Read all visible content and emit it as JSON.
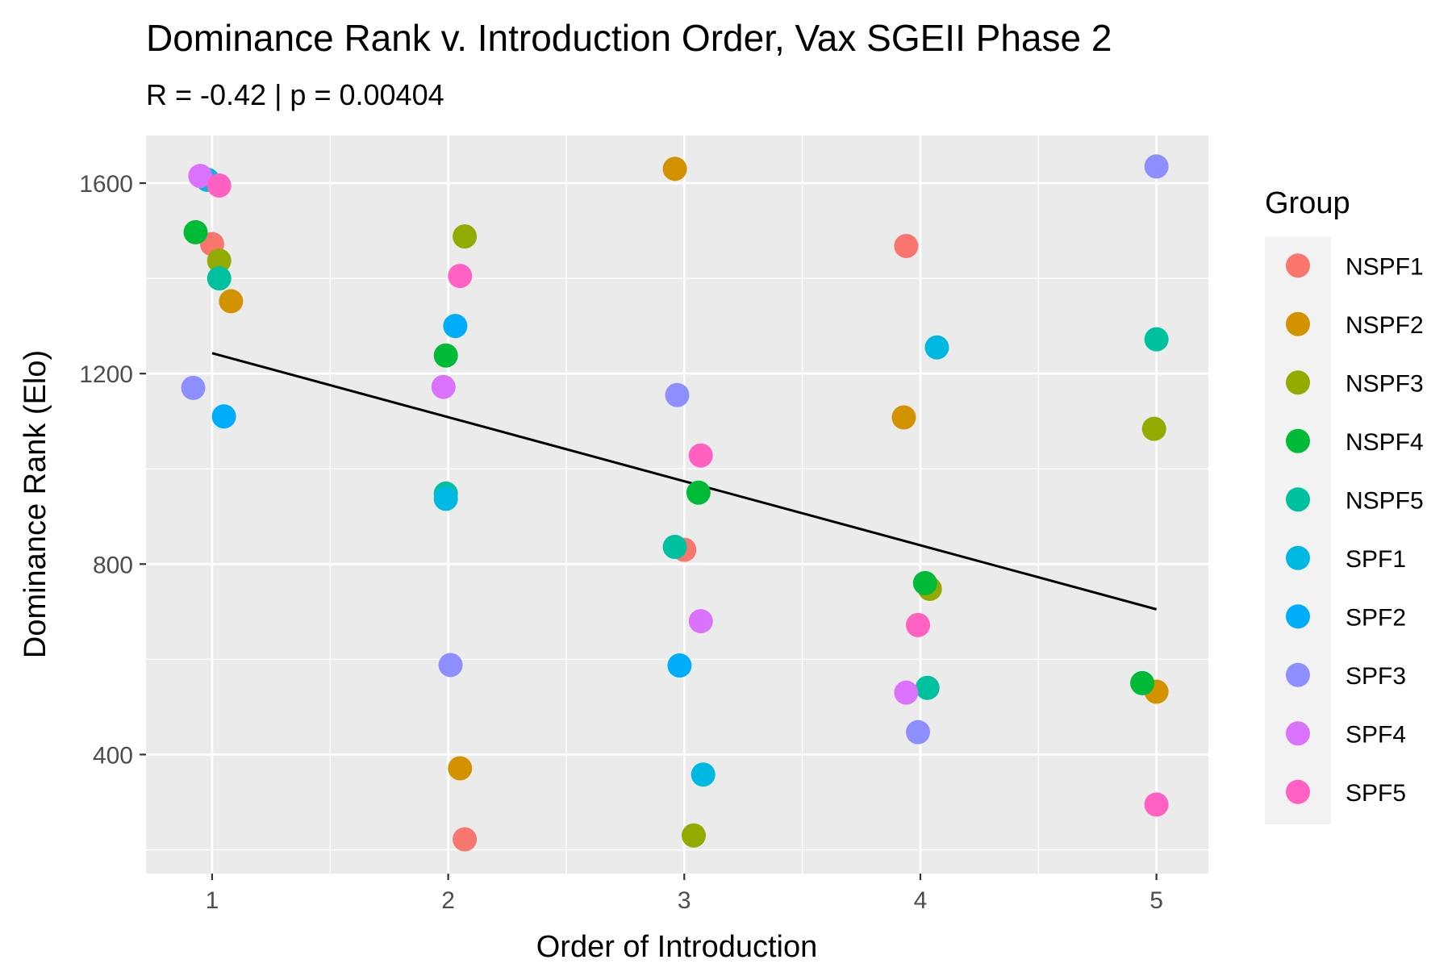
{
  "chart_data": {
    "type": "scatter",
    "title": "Dominance Rank v. Introduction Order, Vax SGEII Phase 2",
    "subtitle": "R = -0.42 | p = 0.00404",
    "xlabel": "Order of Introduction",
    "ylabel": "Dominance Rank (Elo)",
    "xlim": [
      0.72,
      5.22
    ],
    "ylim": [
      150,
      1700
    ],
    "x_ticks": [
      1,
      2,
      3,
      4,
      5
    ],
    "x_tick_labels": [
      "1",
      "2",
      "3",
      "4",
      "5"
    ],
    "y_ticks": [
      400,
      800,
      1200,
      1600
    ],
    "y_tick_labels": [
      "400",
      "800",
      "1200",
      "1600"
    ],
    "grid": true,
    "legend": {
      "title": "Group",
      "placement": "right"
    },
    "trend_line": {
      "x": [
        1,
        5
      ],
      "y": [
        1243,
        705
      ]
    },
    "series": [
      {
        "name": "NSPF1",
        "color": "#F8766D",
        "points": [
          [
            1.0,
            1472
          ],
          [
            3.0,
            830
          ],
          [
            2.07,
            222
          ],
          [
            3.94,
            1468
          ]
        ]
      },
      {
        "name": "NSPF2",
        "color": "#D39200",
        "points": [
          [
            1.08,
            1352
          ],
          [
            2.05,
            371
          ],
          [
            2.96,
            1630
          ],
          [
            3.93,
            1108
          ],
          [
            5.0,
            532
          ]
        ]
      },
      {
        "name": "NSPF3",
        "color": "#93AA00",
        "points": [
          [
            1.03,
            1437
          ],
          [
            2.07,
            1488
          ],
          [
            3.04,
            230
          ],
          [
            4.04,
            748
          ],
          [
            4.99,
            1084
          ]
        ]
      },
      {
        "name": "NSPF4",
        "color": "#00BA38",
        "points": [
          [
            0.93,
            1497
          ],
          [
            1.99,
            1238
          ],
          [
            3.06,
            950
          ],
          [
            4.02,
            760
          ],
          [
            4.94,
            550
          ]
        ]
      },
      {
        "name": "NSPF5",
        "color": "#00C19F",
        "points": [
          [
            1.03,
            1400
          ],
          [
            1.99,
            948
          ],
          [
            2.96,
            836
          ],
          [
            4.03,
            540
          ],
          [
            5.0,
            1272
          ]
        ]
      },
      {
        "name": "SPF1",
        "color": "#00B9E3",
        "points": [
          [
            0.98,
            1607
          ],
          [
            1.99,
            937
          ],
          [
            3.08,
            358
          ],
          [
            4.07,
            1255
          ]
        ]
      },
      {
        "name": "SPF2",
        "color": "#00ADFA",
        "points": [
          [
            1.05,
            1110
          ],
          [
            2.03,
            1300
          ],
          [
            2.98,
            587
          ]
        ]
      },
      {
        "name": "SPF3",
        "color": "#8E8FFF",
        "points": [
          [
            0.92,
            1170
          ],
          [
            2.01,
            588
          ],
          [
            2.97,
            1155
          ],
          [
            3.99,
            447
          ],
          [
            5.0,
            1635
          ]
        ]
      },
      {
        "name": "SPF4",
        "color": "#DB72FB",
        "points": [
          [
            0.95,
            1615
          ],
          [
            1.98,
            1172
          ],
          [
            3.07,
            680
          ],
          [
            3.94,
            530
          ]
        ]
      },
      {
        "name": "SPF5",
        "color": "#FF61C3",
        "points": [
          [
            1.03,
            1595
          ],
          [
            2.05,
            1405
          ],
          [
            3.07,
            1028
          ],
          [
            3.99,
            672
          ],
          [
            5.0,
            295
          ]
        ]
      }
    ]
  }
}
